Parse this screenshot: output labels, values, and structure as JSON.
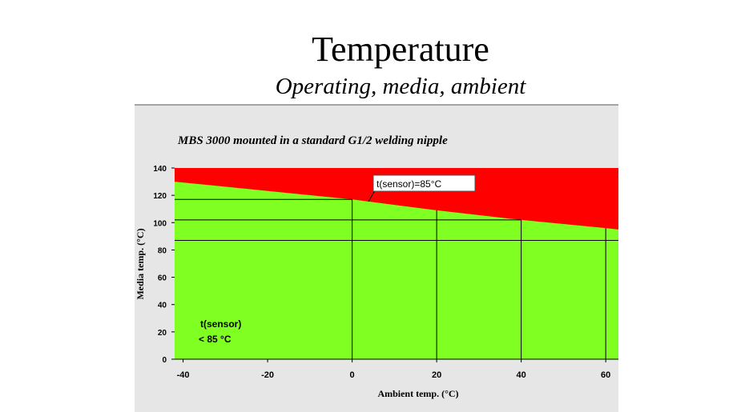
{
  "title": "Temperature",
  "subtitle": "Operating, media, ambient",
  "chart_data": {
    "type": "area",
    "title": "MBS 3000 mounted in a standard G1/2 welding nipple",
    "x_label": "Ambient temp. (°C)",
    "y_label": "Media temp. (°C)",
    "x": [
      -42,
      0,
      20,
      40,
      60,
      63
    ],
    "values": [
      130,
      117,
      109,
      102,
      96,
      95
    ],
    "below_color": "#80ff22",
    "above_color": "#ff0000",
    "xlim": [
      -42,
      63
    ],
    "ylim": [
      0,
      140
    ],
    "xticks": [
      -40,
      -20,
      0,
      20,
      40,
      60
    ],
    "yticks": [
      0,
      20,
      40,
      60,
      80,
      100,
      120,
      140
    ],
    "guide_x": [
      0,
      20,
      40,
      60
    ],
    "guide_y": [
      117,
      102,
      87
    ],
    "annotations": [
      "t(sensor)=85°C",
      "t(sensor)",
      "< 85 °C"
    ]
  }
}
